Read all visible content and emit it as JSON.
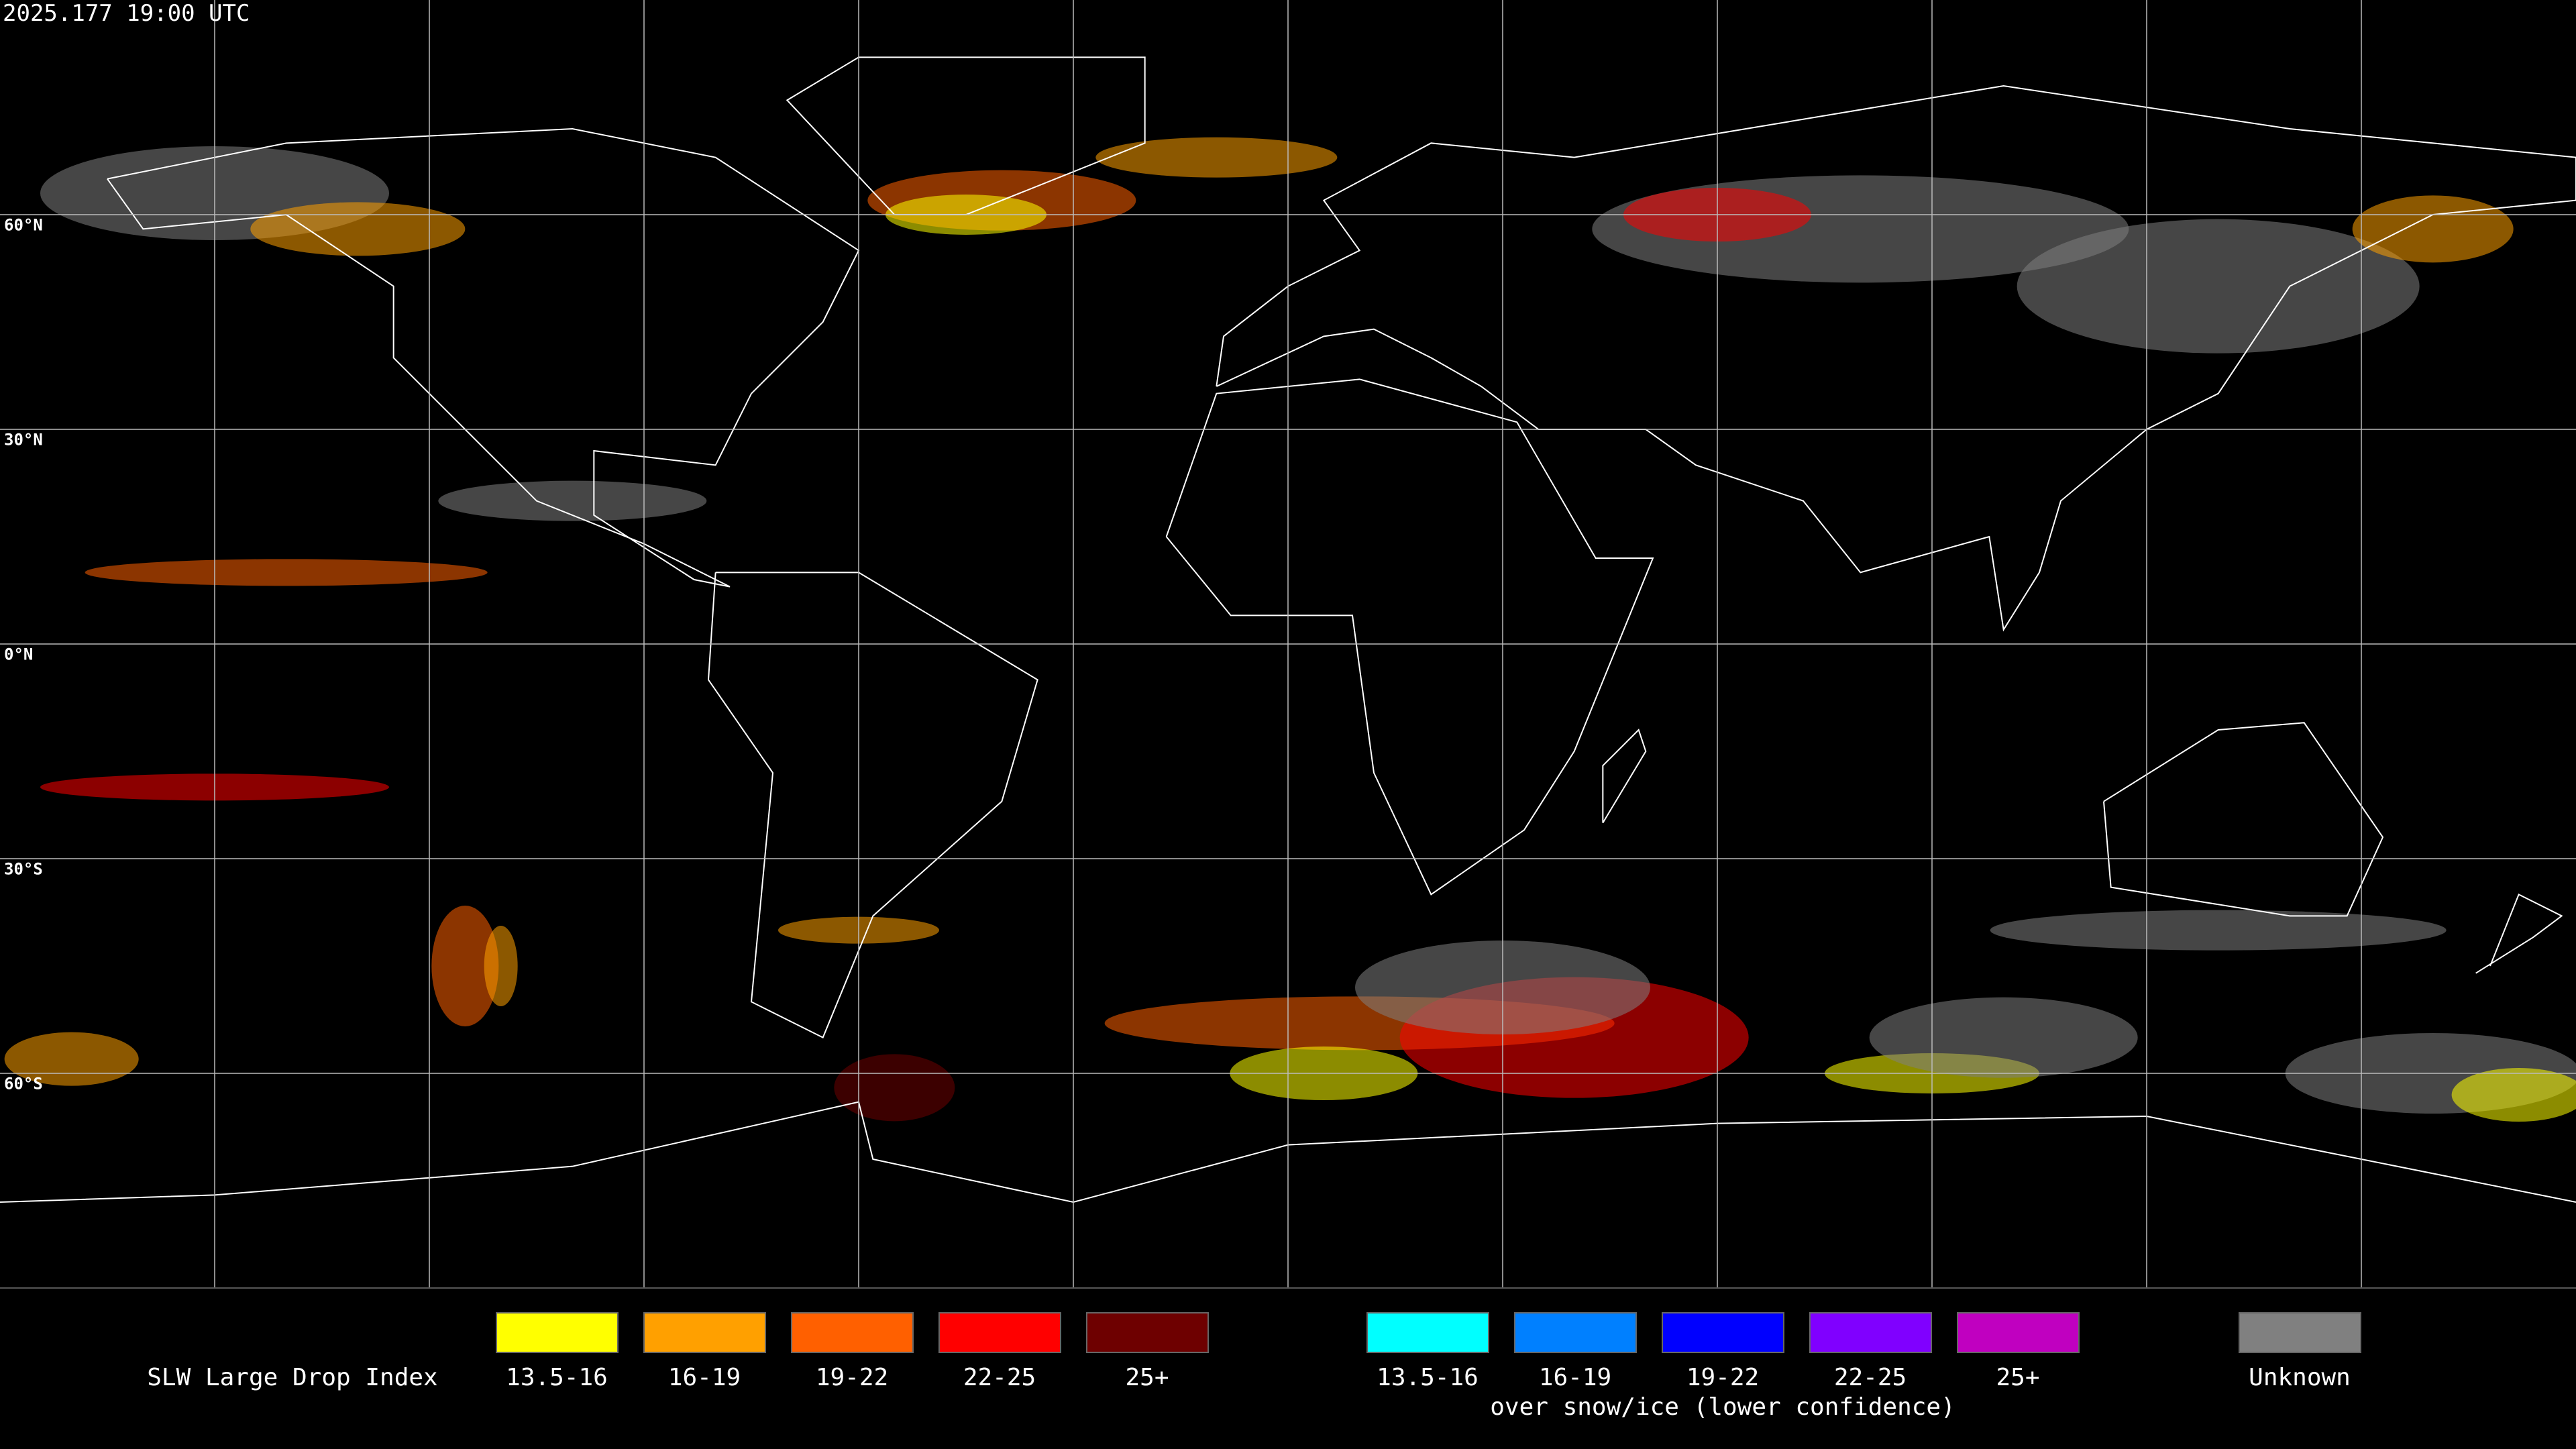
{
  "header": {
    "timestamp": "2025.177 19:00 UTC"
  },
  "map": {
    "latitude_labels": [
      "60°N",
      "30°N",
      "0°N",
      "30°S",
      "60°S"
    ]
  },
  "legend": {
    "title": "SLW Large Drop Index",
    "groups": [
      {
        "items": [
          {
            "label": "13.5-16",
            "color": "#ffff00"
          },
          {
            "label": "16-19",
            "color": "#ffa000"
          },
          {
            "label": "19-22",
            "color": "#ff6000"
          },
          {
            "label": "22-25",
            "color": "#ff0000"
          },
          {
            "label": "25+",
            "color": "#6e0000"
          }
        ]
      },
      {
        "items": [
          {
            "label": "13.5-16",
            "color": "#00ffff"
          },
          {
            "label": "16-19",
            "color": "#0080ff"
          },
          {
            "label": "19-22",
            "color": "#0000ff"
          },
          {
            "label": "22-25",
            "color": "#8000ff"
          },
          {
            "label": "25+",
            "color": "#c000c0"
          }
        ],
        "note": "over snow/ice (lower confidence)"
      },
      {
        "items": [
          {
            "label": "Unknown",
            "color": "#808080"
          }
        ]
      }
    ]
  }
}
